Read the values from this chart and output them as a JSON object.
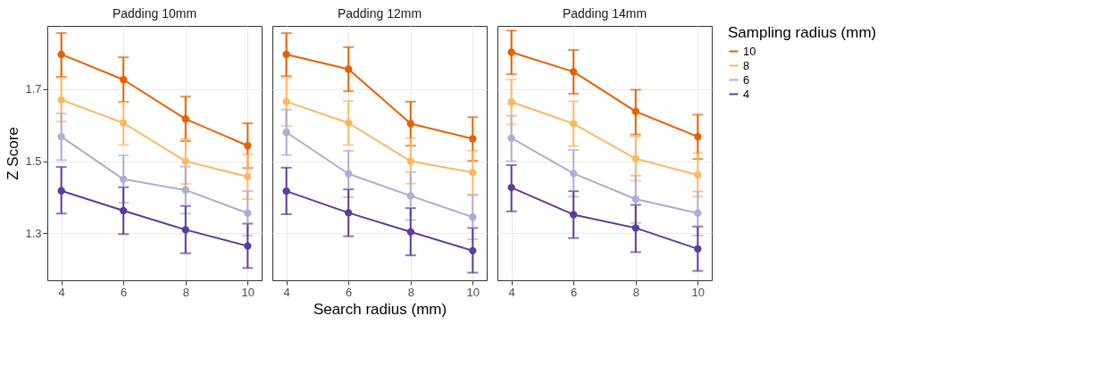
{
  "chart_data": [
    {
      "type": "line",
      "title": "Padding 10mm",
      "ylabel": "Z Score",
      "x": [
        4,
        6,
        8,
        10
      ],
      "xlim": [
        3.55,
        10.45
      ],
      "xticks": [
        4,
        6,
        8,
        10
      ],
      "ylim": [
        1.17,
        1.875
      ],
      "yticks": [
        1.3,
        1.5,
        1.7
      ],
      "grid": true,
      "marker": "circle",
      "legend": false,
      "series": [
        {
          "name": "10",
          "color": "#e66101",
          "values": [
            1.796,
            1.726,
            1.617,
            1.543
          ],
          "errors": [
            [
              1.734,
              1.855
            ],
            [
              1.664,
              1.788
            ],
            [
              1.556,
              1.679
            ],
            [
              1.481,
              1.605
            ]
          ]
        },
        {
          "name": "8",
          "color": "#fdb863",
          "values": [
            1.67,
            1.606,
            1.5,
            1.457
          ],
          "errors": [
            [
              1.61,
              1.731
            ],
            [
              1.545,
              1.665
            ],
            [
              1.437,
              1.562
            ],
            [
              1.395,
              1.519
            ]
          ]
        },
        {
          "name": "6",
          "color": "#b2abd2",
          "values": [
            1.568,
            1.45,
            1.42,
            1.356
          ],
          "errors": [
            [
              1.503,
              1.632
            ],
            [
              1.385,
              1.516
            ],
            [
              1.355,
              1.485
            ],
            [
              1.294,
              1.417
            ]
          ]
        },
        {
          "name": "4",
          "color": "#5e3c99",
          "values": [
            1.418,
            1.363,
            1.31,
            1.265
          ],
          "errors": [
            [
              1.355,
              1.484
            ],
            [
              1.298,
              1.428
            ],
            [
              1.245,
              1.376
            ],
            [
              1.204,
              1.327
            ]
          ]
        }
      ]
    },
    {
      "type": "line",
      "title": "Padding 12mm",
      "xlabel": "Search radius (mm)",
      "x": [
        4,
        6,
        8,
        10
      ],
      "xlim": [
        3.55,
        10.45
      ],
      "xticks": [
        4,
        6,
        8,
        10
      ],
      "ylim": [
        1.17,
        1.875
      ],
      "yticks": [
        1.3,
        1.5,
        1.7
      ],
      "tick_labels": "x",
      "grid": true,
      "marker": "circle",
      "legend": false,
      "series": [
        {
          "name": "10",
          "color": "#e66101",
          "values": [
            1.796,
            1.755,
            1.604,
            1.562
          ],
          "errors": [
            [
              1.736,
              1.855
            ],
            [
              1.694,
              1.816
            ],
            [
              1.543,
              1.665
            ],
            [
              1.501,
              1.622
            ]
          ]
        },
        {
          "name": "8",
          "color": "#fdb863",
          "values": [
            1.665,
            1.606,
            1.5,
            1.469
          ],
          "errors": [
            [
              1.598,
              1.732
            ],
            [
              1.545,
              1.667
            ],
            [
              1.438,
              1.564
            ],
            [
              1.408,
              1.529
            ]
          ]
        },
        {
          "name": "6",
          "color": "#b2abd2",
          "values": [
            1.58,
            1.465,
            1.404,
            1.345
          ],
          "errors": [
            [
              1.517,
              1.643
            ],
            [
              1.4,
              1.529
            ],
            [
              1.337,
              1.47
            ],
            [
              1.284,
              1.406
            ]
          ]
        },
        {
          "name": "4",
          "color": "#5e3c99",
          "values": [
            1.417,
            1.357,
            1.304,
            1.252
          ],
          "errors": [
            [
              1.353,
              1.482
            ],
            [
              1.292,
              1.422
            ],
            [
              1.239,
              1.37
            ],
            [
              1.191,
              1.315
            ]
          ]
        }
      ]
    },
    {
      "type": "line",
      "title": "Padding 14mm",
      "legend_title": "Sampling radius (mm)",
      "x": [
        4,
        6,
        8,
        10
      ],
      "xlim": [
        3.55,
        10.45
      ],
      "xticks": [
        4,
        6,
        8,
        10
      ],
      "ylim": [
        1.17,
        1.875
      ],
      "yticks": [
        1.3,
        1.5,
        1.7
      ],
      "tick_labels": "x",
      "grid": true,
      "marker": "circle",
      "legend": "right",
      "series": [
        {
          "name": "10",
          "color": "#e66101",
          "values": [
            1.802,
            1.748,
            1.638,
            1.568
          ],
          "errors": [
            [
              1.741,
              1.862
            ],
            [
              1.687,
              1.808
            ],
            [
              1.574,
              1.698
            ],
            [
              1.506,
              1.629
            ]
          ]
        },
        {
          "name": "8",
          "color": "#fdb863",
          "values": [
            1.664,
            1.604,
            1.507,
            1.462
          ],
          "errors": [
            [
              1.602,
              1.726
            ],
            [
              1.542,
              1.666
            ],
            [
              1.446,
              1.568
            ],
            [
              1.402,
              1.523
            ]
          ]
        },
        {
          "name": "6",
          "color": "#b2abd2",
          "values": [
            1.564,
            1.466,
            1.395,
            1.356
          ],
          "errors": [
            [
              1.5,
              1.626
            ],
            [
              1.402,
              1.531
            ],
            [
              1.329,
              1.46
            ],
            [
              1.294,
              1.416
            ]
          ]
        },
        {
          "name": "4",
          "color": "#5e3c99",
          "values": [
            1.427,
            1.352,
            1.315,
            1.257
          ],
          "errors": [
            [
              1.361,
              1.489
            ],
            [
              1.287,
              1.417
            ],
            [
              1.248,
              1.379
            ],
            [
              1.196,
              1.319
            ]
          ]
        }
      ]
    }
  ]
}
